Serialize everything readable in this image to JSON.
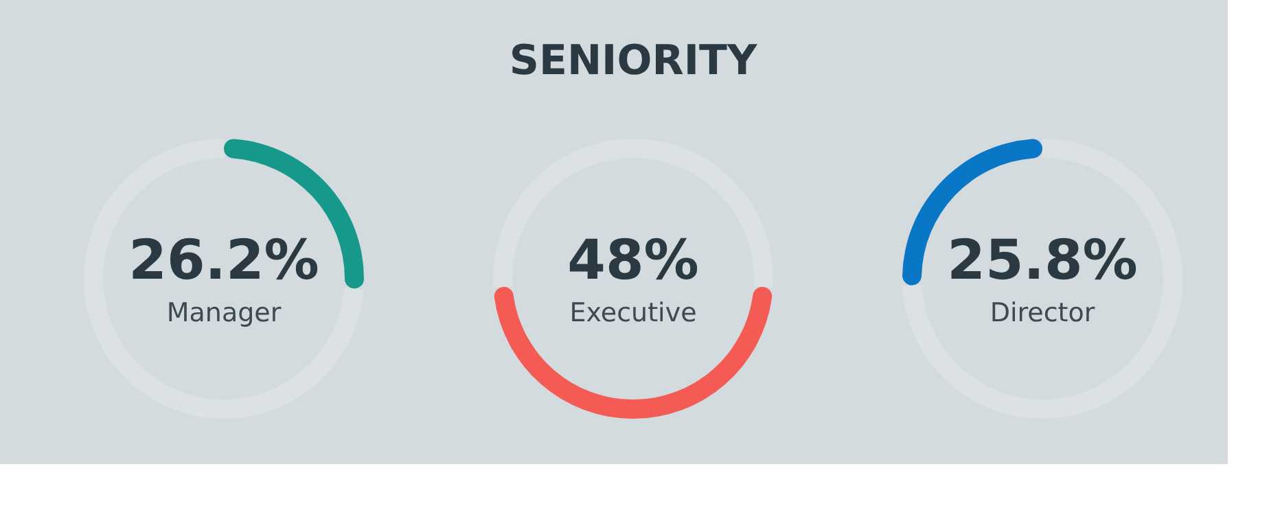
{
  "chart_data": [
    {
      "type": "donut",
      "categories": [
        "Manager",
        null
      ],
      "values": [
        26.2,
        73.8
      ],
      "colors": [
        "#16998a",
        "#e6eaec"
      ],
      "value_labels": [
        "26.2%",
        null
      ]
    },
    {
      "type": "donut",
      "title": "SENIORITY",
      "categories": [
        null,
        "Executive",
        null
      ],
      "values": [
        26,
        48,
        26
      ],
      "colors": [
        "#e6eaec",
        "#f45b55",
        "#e6eaec"
      ],
      "value_labels": [
        null,
        "48%",
        null
      ]
    },
    {
      "type": "donut",
      "categories": [
        null,
        "Director"
      ],
      "values": [
        74.2,
        25.8
      ],
      "colors": [
        "#e6eaec",
        "#0a76c6"
      ],
      "value_labels": [
        null,
        "25.8%"
      ]
    }
  ]
}
